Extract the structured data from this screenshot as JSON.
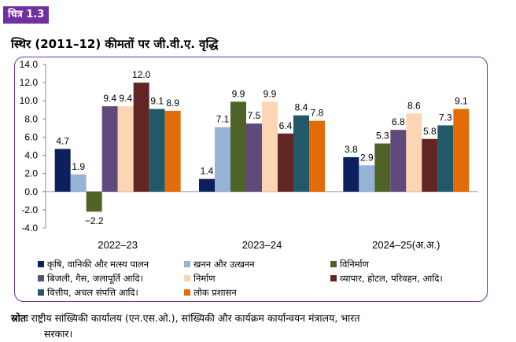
{
  "figure": {
    "label": "चित्र 1.3",
    "title": "स्थिर (2011–12) कीमतों पर जी.वी.ए. वृद्धि"
  },
  "source": {
    "label": "स्रोतः",
    "text_line1": "राष्ट्रीय सांख्यिकी कार्यालय (एन.एस.ओ.), सांख्यिकी और कार्यक्रम कार्यान्वयन मंत्रालय, भारत",
    "text_line2": "सरकार।"
  },
  "chart_data": {
    "type": "bar",
    "title": "",
    "xlabel": "",
    "ylabel": "",
    "ylim": [
      -4.0,
      14.0
    ],
    "yticks": [
      "14.0",
      "12.0",
      "10.0",
      "8.0",
      "6.0",
      "4.0",
      "2.0",
      "0.0",
      "-2.0",
      "-4.0"
    ],
    "grid": false,
    "legend_position": "bottom",
    "categories": [
      "2022–23",
      "2023–24",
      "2024–25(अ.अ.)"
    ],
    "series": [
      {
        "name": "कृषि, वानिकी और मत्स्य पालन",
        "color": "#0d1f5c",
        "values": [
          4.7,
          1.4,
          3.8
        ],
        "labels": [
          "4.7",
          "1.4",
          "3.8"
        ]
      },
      {
        "name": "खनन और उत्खनन",
        "color": "#95b3d7",
        "values": [
          1.9,
          7.1,
          2.9
        ],
        "labels": [
          "1.9",
          "7.1",
          "2.9"
        ]
      },
      {
        "name": "विनिर्माण",
        "color": "#4f6228",
        "values": [
          -2.2,
          9.9,
          5.3
        ],
        "labels": [
          "−2.2",
          "9.9",
          "5.3"
        ]
      },
      {
        "name": "बिजली, गैस, जलापूर्ति आदि।",
        "color": "#604a7b",
        "values": [
          9.4,
          7.5,
          6.8
        ],
        "labels": [
          "9.4",
          "7.5",
          "6.8"
        ]
      },
      {
        "name": "निर्माण",
        "color": "#fcd5b5",
        "values": [
          9.4,
          9.9,
          8.6
        ],
        "labels": [
          "9.4",
          "9.9",
          "8.6"
        ]
      },
      {
        "name": "व्यापार, होटल, परिवहन, आदि।",
        "color": "#632523",
        "values": [
          12.0,
          6.4,
          5.8
        ],
        "labels": [
          "12.0",
          "6.4",
          "5.8"
        ]
      },
      {
        "name": "वित्तीय, अचल संपत्ति आदि।",
        "color": "#215968",
        "values": [
          9.1,
          8.4,
          7.3
        ],
        "labels": [
          "9.1",
          "8.4",
          "7.3"
        ]
      },
      {
        "name": "लोक प्रशासन",
        "color": "#e36c09",
        "values": [
          8.9,
          7.8,
          9.1
        ],
        "labels": [
          "8.9",
          "7.8",
          "9.1"
        ]
      }
    ]
  }
}
